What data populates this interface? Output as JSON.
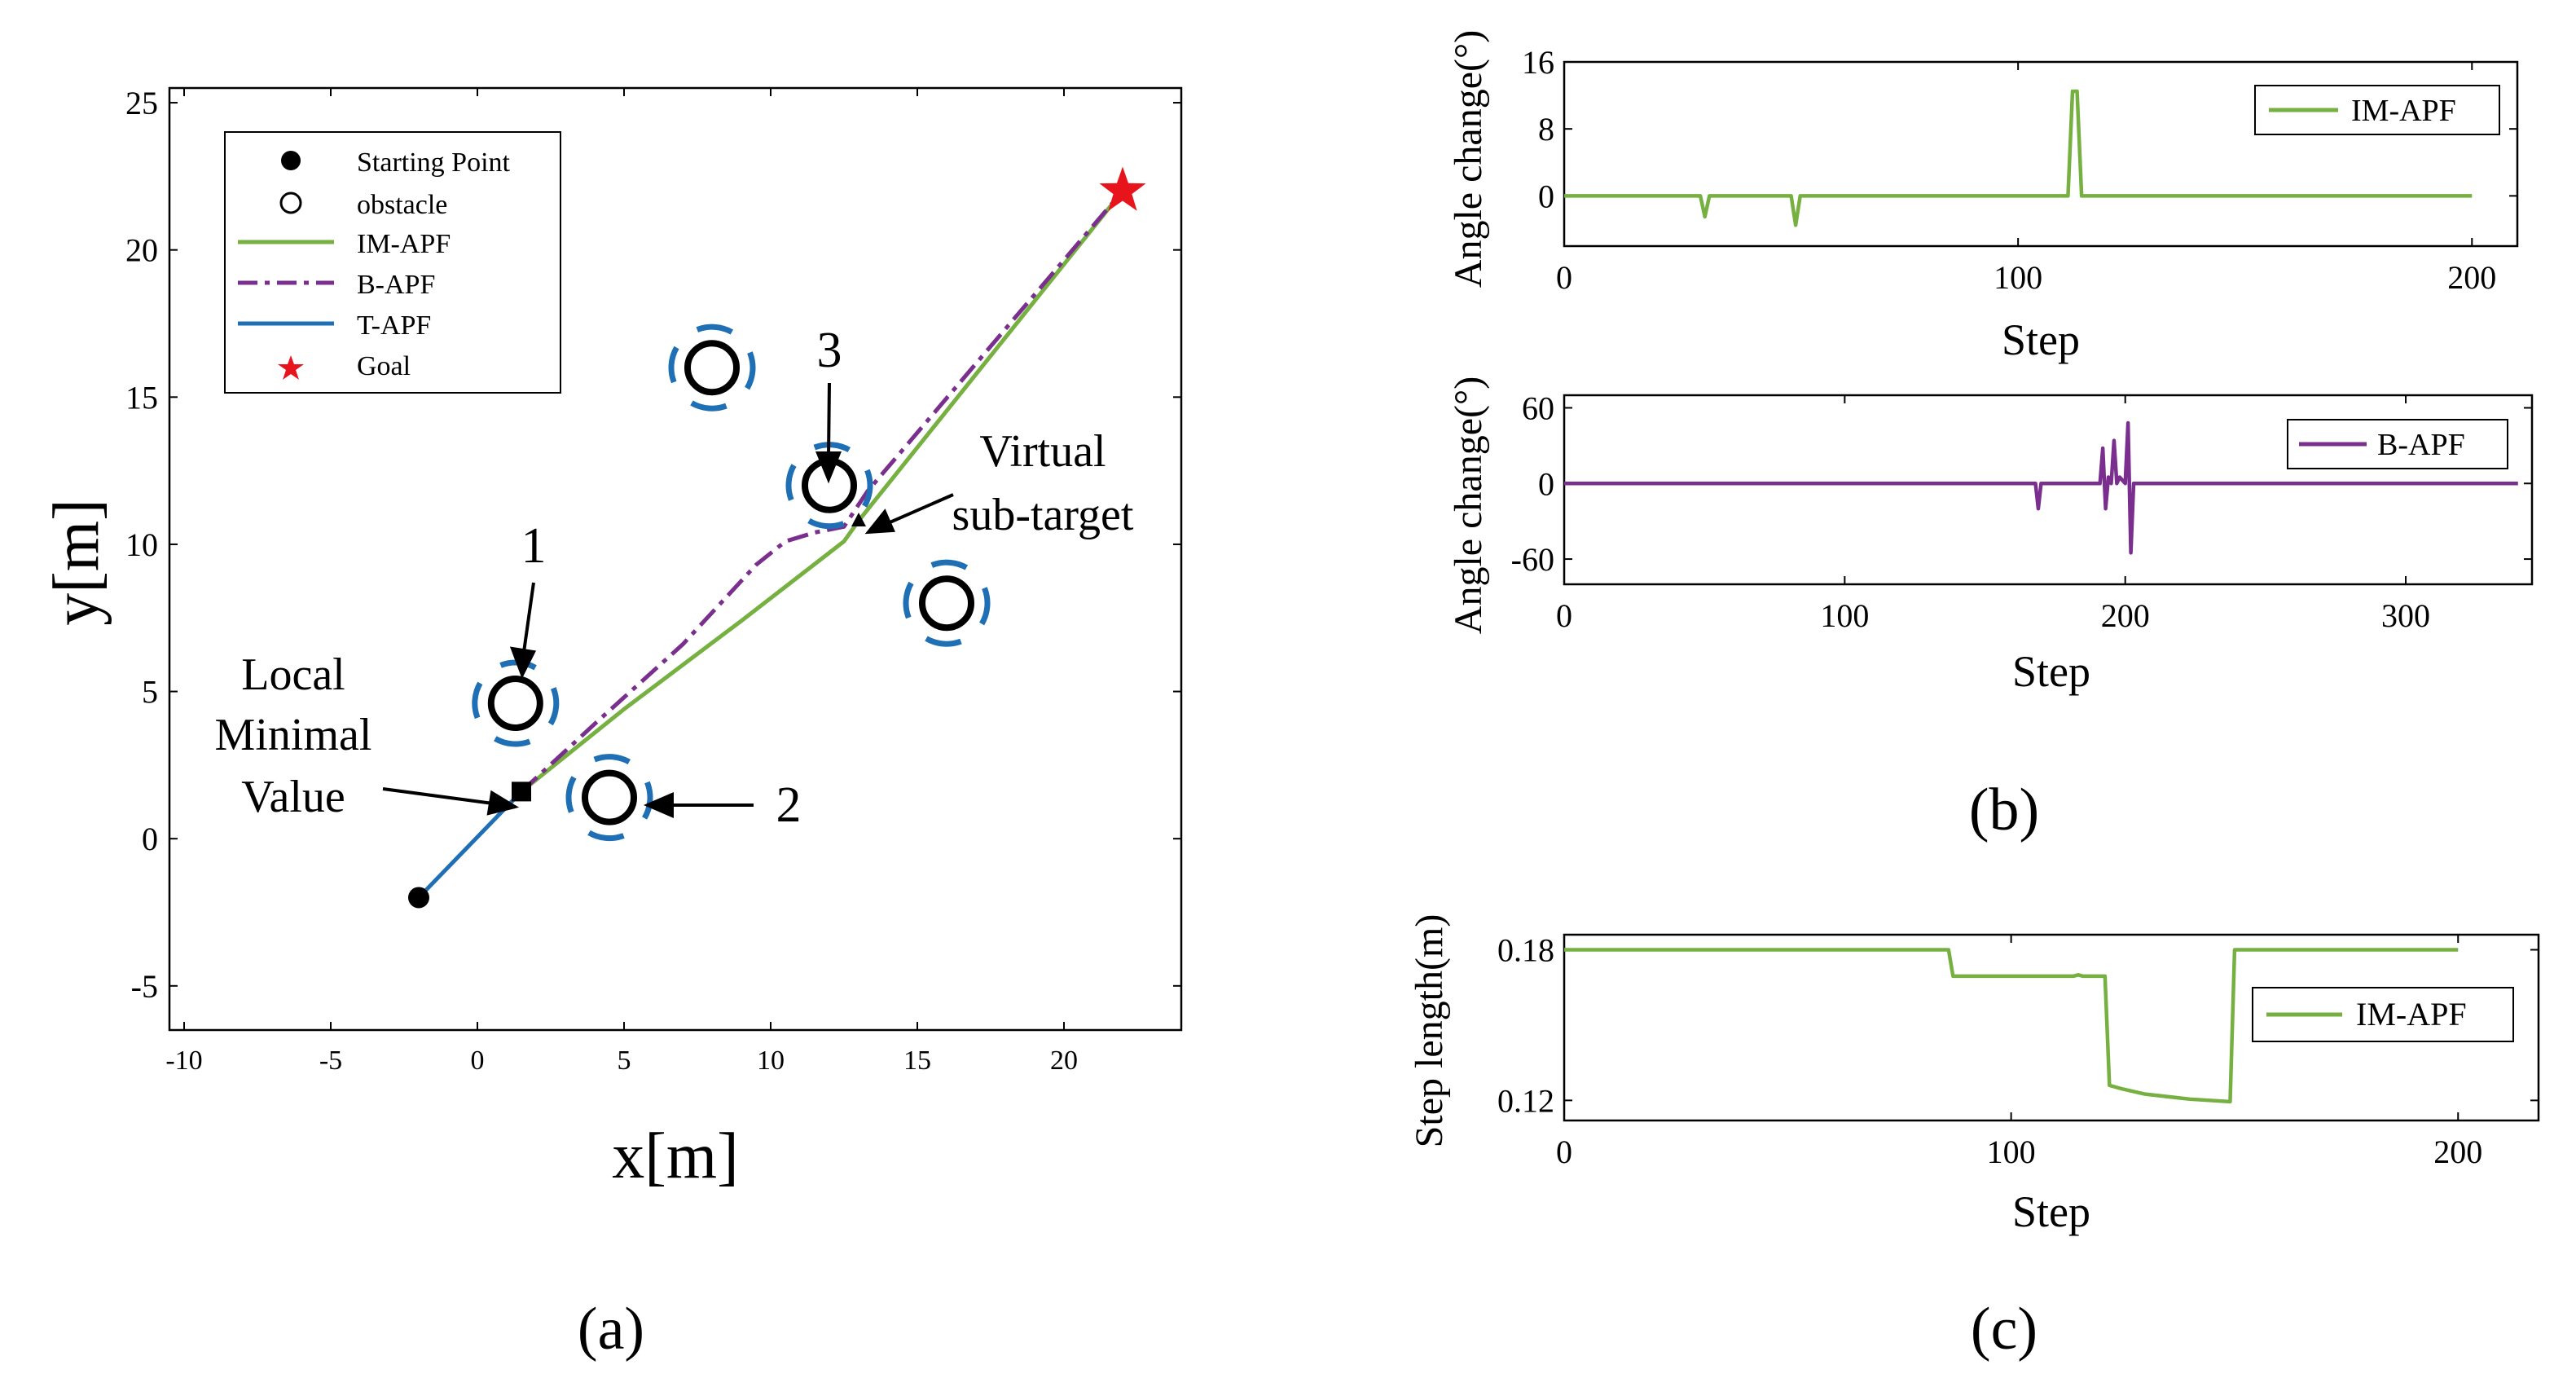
{
  "colors": {
    "im_apf": "#76B041",
    "b_apf": "#7A2E8E",
    "t_apf": "#1F6FB5",
    "obstacle_ring": "#1F6FB5",
    "goal": "#E8141B",
    "axis": "#000000"
  },
  "panel_labels": {
    "a": "(a)",
    "b": "(b)",
    "c": "(c)"
  },
  "chart_data": [
    {
      "id": "a",
      "type": "scatter",
      "title": "",
      "xlabel": "x[m]",
      "ylabel": "y[m]",
      "xlim": [
        -10.5,
        24
      ],
      "ylim": [
        -6.5,
        25.5
      ],
      "xticks": [
        -10,
        -5,
        0,
        5,
        10,
        15,
        20
      ],
      "yticks": [
        -5,
        0,
        5,
        10,
        15,
        20,
        25
      ],
      "legend": {
        "position": "top-left",
        "entries": [
          {
            "label": "Starting Point",
            "marker": "filled-circle"
          },
          {
            "label": "obstacle",
            "marker": "open-circle"
          },
          {
            "label": "IM-APF",
            "marker": "solid-line",
            "color": "#76B041"
          },
          {
            "label": "B-APF",
            "marker": "dashdot-line",
            "color": "#7A2E8E"
          },
          {
            "label": "T-APF",
            "marker": "solid-line",
            "color": "#1F6FB5"
          },
          {
            "label": "Goal",
            "marker": "star",
            "color": "#E8141B"
          }
        ]
      },
      "start": [
        -2,
        -2
      ],
      "goal": [
        22,
        22
      ],
      "local_minimum": [
        1.5,
        1.6
      ],
      "virtual_subtarget": [
        13,
        10.8
      ],
      "obstacles": [
        [
          1.3,
          4.6
        ],
        [
          4.5,
          1.4
        ],
        [
          8,
          16
        ],
        [
          12,
          12
        ],
        [
          16,
          8
        ]
      ],
      "series": [
        {
          "name": "T-APF",
          "points": [
            [
              -2,
              -2
            ],
            [
              1.5,
              1.6
            ]
          ]
        },
        {
          "name": "IM-APF",
          "points": [
            [
              1.5,
              1.6
            ],
            [
              5,
              4.4
            ],
            [
              9,
              7.4
            ],
            [
              12.5,
              10.1
            ],
            [
              13,
              10.8
            ],
            [
              22,
              22
            ]
          ]
        },
        {
          "name": "B-APF",
          "points": [
            [
              1.5,
              1.6
            ],
            [
              4,
              3.9
            ],
            [
              7,
              6.6
            ],
            [
              9.5,
              9.3
            ],
            [
              10.5,
              10.1
            ],
            [
              11.5,
              10.4
            ],
            [
              12.5,
              10.6
            ],
            [
              13.3,
              11.8
            ],
            [
              22,
              22
            ]
          ]
        }
      ],
      "annotations": [
        {
          "text": "1",
          "target": "obstacle 1"
        },
        {
          "text": "2",
          "target": "obstacle 2"
        },
        {
          "text": "3",
          "target": "obstacle 3"
        },
        {
          "text": "Local",
          "target": "local minimum"
        },
        {
          "text": "Minimal",
          "target": "local minimum"
        },
        {
          "text": "Value",
          "target": "local minimum"
        },
        {
          "text": "Virtual",
          "target": "virtual sub-target"
        },
        {
          "text": "sub-target",
          "target": "virtual sub-target"
        }
      ]
    },
    {
      "id": "b1",
      "type": "line",
      "xlabel": "Step",
      "ylabel": "Angle change(°)",
      "xlim": [
        0,
        210
      ],
      "ylim": [
        -6,
        16
      ],
      "xticks": [
        0,
        100,
        200
      ],
      "yticks": [
        0,
        8,
        16
      ],
      "legend": {
        "position": "top-right",
        "entries": [
          {
            "label": "IM-APF",
            "color": "#76B041"
          }
        ]
      },
      "series": [
        {
          "name": "IM-APF",
          "x": [
            0,
            30,
            31,
            32,
            50,
            51,
            52,
            111,
            112,
            113,
            114,
            200
          ],
          "y": [
            0,
            0,
            -2.5,
            0,
            0,
            -3.5,
            0,
            0,
            12.5,
            12.5,
            0,
            0
          ]
        }
      ]
    },
    {
      "id": "b2",
      "type": "line",
      "xlabel": "Step",
      "ylabel": "Angle change(°)",
      "xlim": [
        0,
        345
      ],
      "ylim": [
        -80,
        70
      ],
      "xticks": [
        0,
        100,
        200,
        300
      ],
      "yticks": [
        -60,
        0,
        60
      ],
      "legend": {
        "position": "top-right",
        "entries": [
          {
            "label": "B-APF",
            "color": "#7A2E8E"
          }
        ]
      },
      "series": [
        {
          "name": "B-APF",
          "x": [
            0,
            168,
            169,
            170,
            180,
            189,
            191,
            192,
            193,
            194,
            195,
            196,
            197,
            198,
            200,
            201,
            202,
            203,
            204,
            340
          ],
          "y": [
            0,
            0,
            -20,
            0,
            0,
            0,
            0,
            28,
            -20,
            5,
            0,
            34,
            0,
            5,
            0,
            48,
            -55,
            0,
            0,
            0
          ]
        }
      ]
    },
    {
      "id": "c",
      "type": "line",
      "xlabel": "Step",
      "ylabel": "Step length(m)",
      "xlim": [
        0,
        218
      ],
      "ylim": [
        0.112,
        0.186
      ],
      "xticks": [
        0,
        100,
        200
      ],
      "yticks": [
        0.12,
        0.18
      ],
      "legend": {
        "position": "center-right",
        "entries": [
          {
            "label": "IM-APF",
            "color": "#76B041"
          }
        ]
      },
      "series": [
        {
          "name": "IM-APF",
          "x": [
            0,
            86,
            87,
            114,
            115,
            116,
            121,
            122,
            125,
            130,
            140,
            149,
            150,
            200
          ],
          "y": [
            0.18,
            0.18,
            0.1695,
            0.1695,
            0.17,
            0.1695,
            0.1695,
            0.126,
            0.1245,
            0.1225,
            0.1205,
            0.1195,
            0.18,
            0.18
          ]
        }
      ]
    }
  ]
}
